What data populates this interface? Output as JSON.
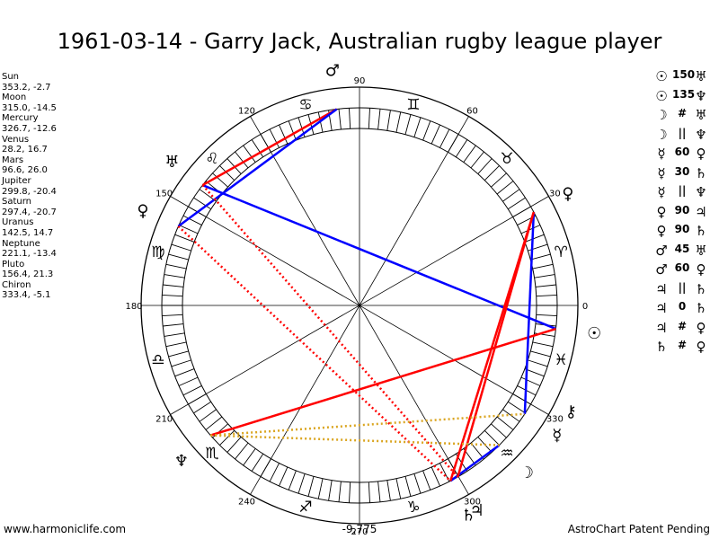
{
  "title": "1961-03-14 - Garry Jack, Australian rugby league player",
  "planets": [
    {
      "name": "Sun",
      "coords": "353.2, -2.7",
      "glyph": "☉",
      "lon": 353.2
    },
    {
      "name": "Moon",
      "coords": "315.0, -14.5",
      "glyph": "☽",
      "lon": 315.0
    },
    {
      "name": "Mercury",
      "coords": "326.7, -12.6",
      "glyph": "☿",
      "lon": 326.7
    },
    {
      "name": "Venus",
      "coords": "28.2, 16.7",
      "glyph": "♀",
      "lon": 28.2
    },
    {
      "name": "Mars",
      "coords": "96.6, 26.0",
      "glyph": "♂",
      "lon": 96.6
    },
    {
      "name": "Jupiter",
      "coords": "299.8, -20.4",
      "glyph": "♃",
      "lon": 299.8
    },
    {
      "name": "Saturn",
      "coords": "297.4, -20.7",
      "glyph": "♄",
      "lon": 297.4
    },
    {
      "name": "Uranus",
      "coords": "142.5, 14.7",
      "glyph": "♅",
      "lon": 142.5
    },
    {
      "name": "Neptune",
      "coords": "221.1, -13.4",
      "glyph": "♆",
      "lon": 221.1
    },
    {
      "name": "Pluto",
      "coords": "156.4, 21.3",
      "glyph": "♀",
      "lon": 156.4
    },
    {
      "name": "Chiron",
      "coords": "333.4, -5.1",
      "glyph": "⚷",
      "lon": 333.4
    }
  ],
  "aspects": [
    {
      "p1": "☉",
      "type": "150",
      "p2": "♅"
    },
    {
      "p1": "☉",
      "type": "135",
      "p2": "♆"
    },
    {
      "p1": "☽",
      "type": "#",
      "p2": "♅"
    },
    {
      "p1": "☽",
      "type": "||",
      "p2": "♆"
    },
    {
      "p1": "☿",
      "type": "60",
      "p2": "♀"
    },
    {
      "p1": "☿",
      "type": "30",
      "p2": "♄"
    },
    {
      "p1": "☿",
      "type": "||",
      "p2": "♆"
    },
    {
      "p1": "♀",
      "type": "90",
      "p2": "♃"
    },
    {
      "p1": "♀",
      "type": "90",
      "p2": "♄"
    },
    {
      "p1": "♂",
      "type": "45",
      "p2": "♅"
    },
    {
      "p1": "♂",
      "type": "60",
      "p2": "♀"
    },
    {
      "p1": "♃",
      "type": "||",
      "p2": "♄"
    },
    {
      "p1": "♃",
      "type": "0",
      "p2": "♄"
    },
    {
      "p1": "♃",
      "type": "#",
      "p2": "♀"
    },
    {
      "p1": "♄",
      "type": "#",
      "p2": "♀"
    }
  ],
  "degree_labels": [
    {
      "text": "0",
      "deg": 0
    },
    {
      "text": "30",
      "deg": 30
    },
    {
      "text": "60",
      "deg": 60
    },
    {
      "text": "90",
      "deg": 90
    },
    {
      "text": "120",
      "deg": 120
    },
    {
      "text": "150",
      "deg": 150
    },
    {
      "text": "180",
      "deg": 180
    },
    {
      "text": "210",
      "deg": 210
    },
    {
      "text": "240",
      "deg": 240
    },
    {
      "text": "270",
      "deg": 270
    },
    {
      "text": "300",
      "deg": 300
    },
    {
      "text": "330",
      "deg": 330
    }
  ],
  "signs": [
    {
      "glyph": "♈",
      "deg": 15
    },
    {
      "glyph": "♉",
      "deg": 45
    },
    {
      "glyph": "♊",
      "deg": 75
    },
    {
      "glyph": "♋",
      "deg": 105
    },
    {
      "glyph": "♌",
      "deg": 135
    },
    {
      "glyph": "♍",
      "deg": 165
    },
    {
      "glyph": "♎",
      "deg": 195
    },
    {
      "glyph": "♏",
      "deg": 225
    },
    {
      "glyph": "♐",
      "deg": 255
    },
    {
      "glyph": "♑",
      "deg": 285
    },
    {
      "glyph": "♒",
      "deg": 315
    },
    {
      "glyph": "♓",
      "deg": 345
    }
  ],
  "lines": [
    {
      "a": "Sun",
      "b": "Uranus",
      "color": "#0000ff",
      "style": "solid"
    },
    {
      "a": "Sun",
      "b": "Neptune",
      "color": "#ff0000",
      "style": "solid"
    },
    {
      "a": "Moon",
      "b": "Saturn",
      "color": "#0000ff",
      "style": "solid"
    },
    {
      "a": "Mercury",
      "b": "Venus",
      "color": "#0000ff",
      "style": "solid"
    },
    {
      "a": "Mars",
      "b": "Uranus",
      "color": "#ff0000",
      "style": "solid"
    },
    {
      "a": "Mars",
      "b": "Pluto",
      "color": "#0000ff",
      "style": "solid"
    },
    {
      "a": "Venus",
      "b": "Jupiter",
      "color": "#ff0000",
      "style": "solid"
    },
    {
      "a": "Venus",
      "b": "Saturn",
      "color": "#ff0000",
      "style": "solid"
    },
    {
      "a": "Uranus",
      "b": "Jupiter",
      "color": "#ff0000",
      "style": "dotted"
    },
    {
      "a": "Pluto",
      "b": "Saturn",
      "color": "#ff0000",
      "style": "dotted"
    },
    {
      "a": "Neptune",
      "b": "Mercury",
      "color": "#daa520",
      "style": "dotted"
    },
    {
      "a": "Neptune",
      "b": "Moon",
      "color": "#daa520",
      "style": "dotted"
    }
  ],
  "bottom_value": "-9,775",
  "footer_left": "www.harmoniclife.com",
  "footer_right": "AstroChart Patent Pending"
}
